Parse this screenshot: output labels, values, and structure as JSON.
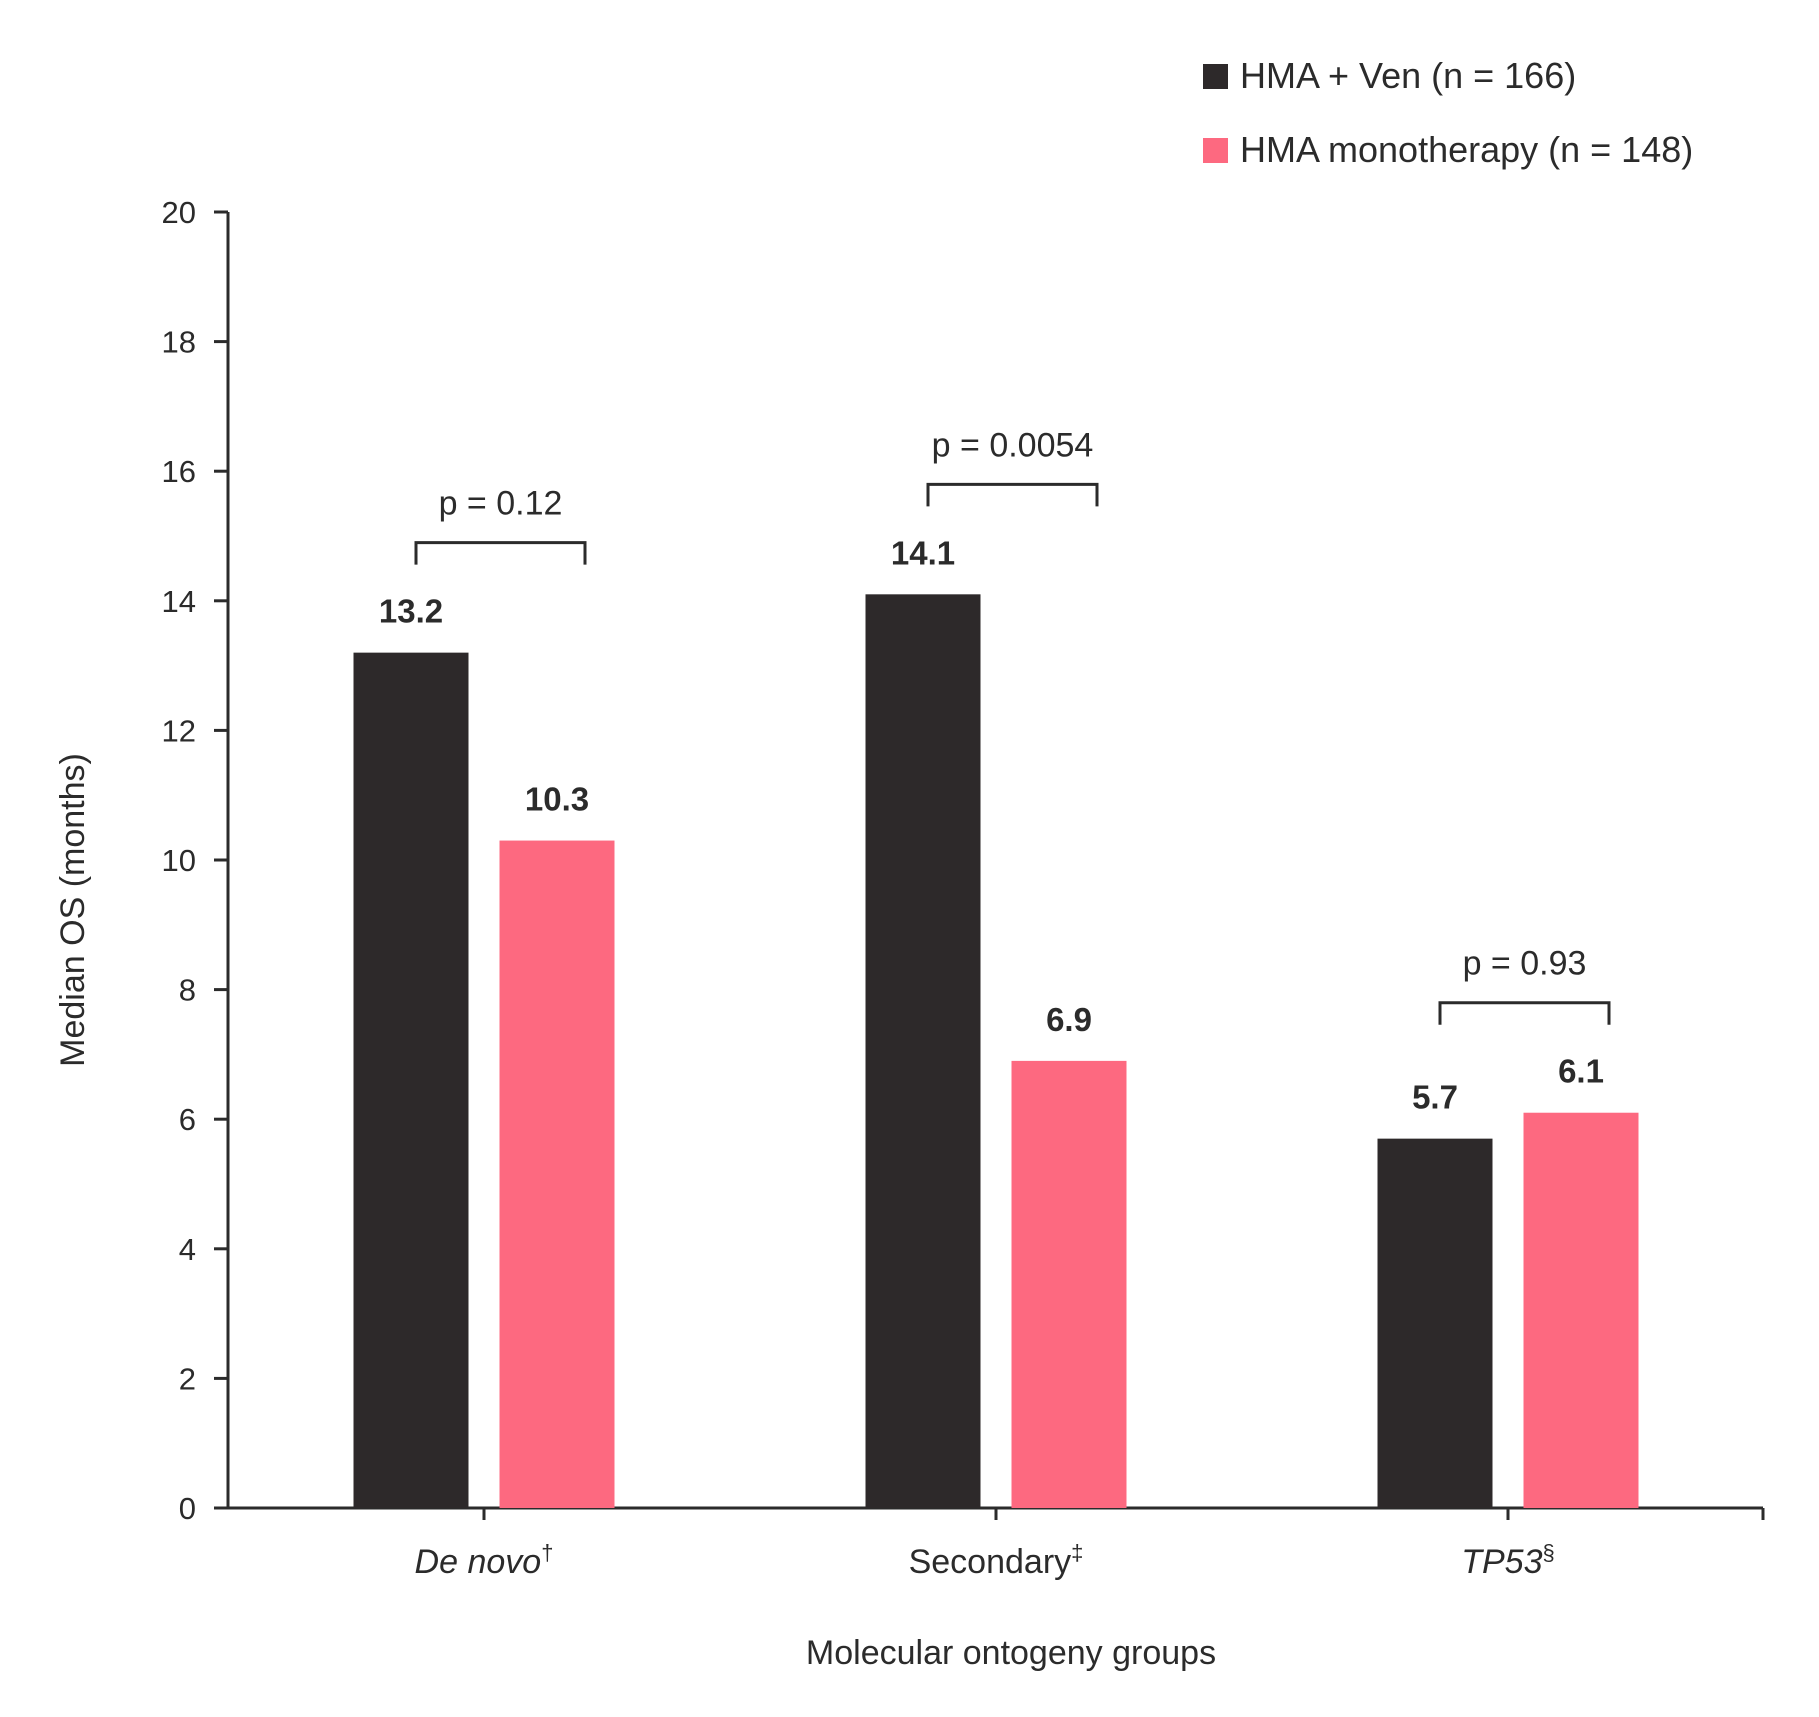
{
  "chart_data": {
    "type": "bar",
    "title": "",
    "xlabel": "Molecular ontogeny groups",
    "ylabel": "Median OS (months)",
    "ylim": [
      0,
      20
    ],
    "yticks": [
      0,
      2,
      4,
      6,
      8,
      10,
      12,
      14,
      16,
      18,
      20
    ],
    "grid": false,
    "legend_position": "top-right",
    "categories": [
      {
        "name": "De novo",
        "mark": "†",
        "italic": true
      },
      {
        "name": "Secondary",
        "mark": "‡",
        "italic": false
      },
      {
        "name": "TP53",
        "mark": "§",
        "italic": true
      }
    ],
    "series": [
      {
        "name": "HMA + Ven (n = 166)",
        "color": "#2d292a",
        "values": [
          13.2,
          14.1,
          5.7
        ]
      },
      {
        "name": "HMA monotherapy (n = 148)",
        "color": "#fd6980",
        "values": [
          10.3,
          6.9,
          6.1
        ]
      }
    ],
    "data_labels": [
      [
        "13.2",
        "14.1",
        "5.7"
      ],
      [
        "10.3",
        "6.9",
        "6.1"
      ]
    ],
    "pvalues": [
      {
        "category_index": 0,
        "text": "p = 0.12"
      },
      {
        "category_index": 1,
        "text": "p = 0.0054"
      },
      {
        "category_index": 2,
        "text": "p = 0.93"
      }
    ]
  }
}
